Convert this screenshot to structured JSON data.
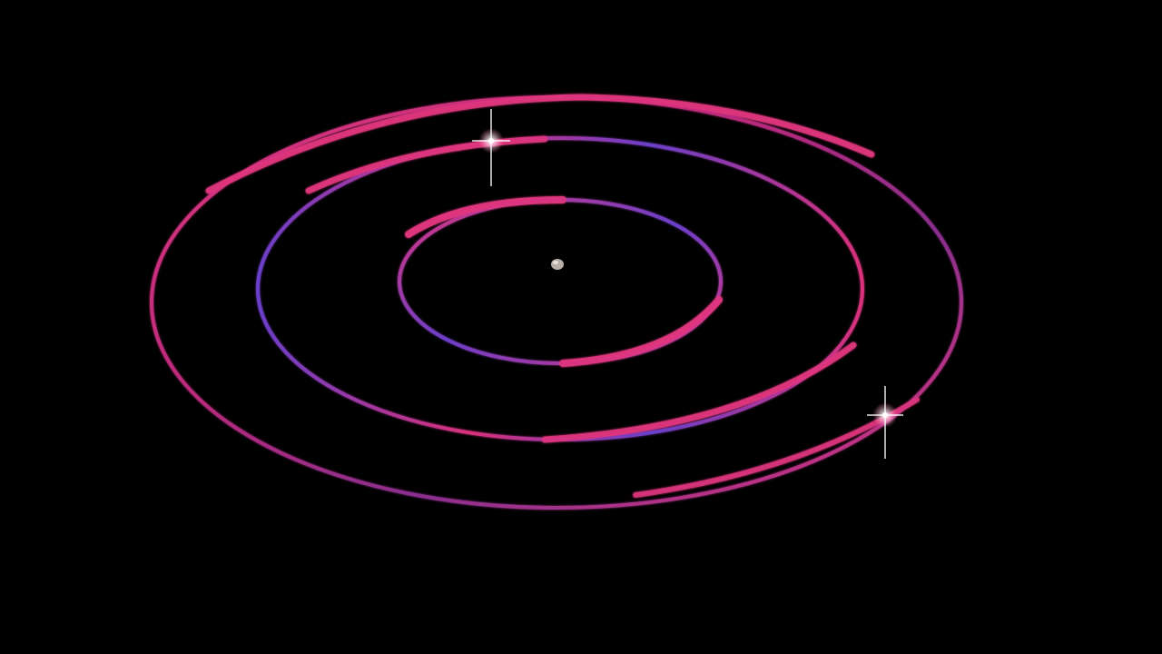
{
  "scene": {
    "background_color": "#000000",
    "ring_colors": {
      "pink": "#d8307a",
      "magenta": "#c02a8c",
      "violet": "#6a3fc8"
    },
    "sparkle_color": "#ffffff",
    "center_object_color": "#b8b0a8"
  }
}
